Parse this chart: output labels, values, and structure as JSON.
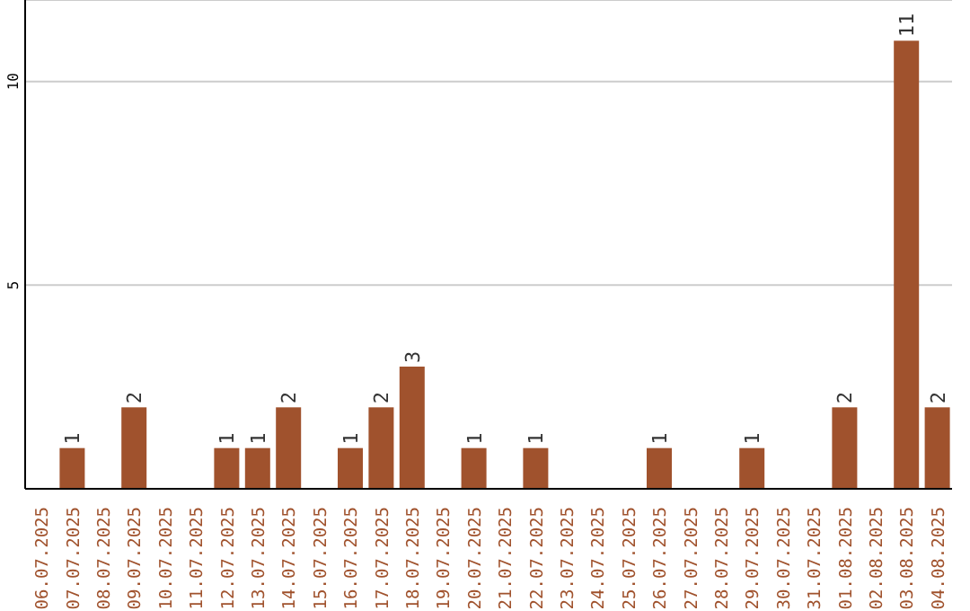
{
  "chart_data": {
    "type": "bar",
    "categories": [
      "06.07.2025",
      "07.07.2025",
      "08.07.2025",
      "09.07.2025",
      "10.07.2025",
      "11.07.2025",
      "12.07.2025",
      "13.07.2025",
      "14.07.2025",
      "15.07.2025",
      "16.07.2025",
      "17.07.2025",
      "18.07.2025",
      "19.07.2025",
      "20.07.2025",
      "21.07.2025",
      "22.07.2025",
      "23.07.2025",
      "24.07.2025",
      "25.07.2025",
      "26.07.2025",
      "27.07.2025",
      "28.07.2025",
      "29.07.2025",
      "30.07.2025",
      "31.07.2025",
      "01.08.2025",
      "02.08.2025",
      "03.08.2025",
      "04.08.2025"
    ],
    "values": [
      0,
      1,
      0,
      2,
      0,
      0,
      1,
      1,
      2,
      0,
      1,
      2,
      3,
      0,
      1,
      0,
      1,
      0,
      0,
      0,
      1,
      0,
      0,
      1,
      0,
      0,
      2,
      0,
      11,
      2
    ],
    "value_labels": [
      null,
      "1",
      null,
      "2",
      null,
      null,
      "1",
      "1",
      "2",
      null,
      "1",
      "2",
      "3",
      null,
      "1",
      null,
      "1",
      null,
      null,
      null,
      "1",
      null,
      null,
      "1",
      null,
      null,
      "2",
      null,
      "11",
      "2"
    ],
    "color": "#a0522d",
    "ylim": [
      0,
      12
    ],
    "yticks": [
      5,
      10
    ],
    "grid": "y"
  }
}
